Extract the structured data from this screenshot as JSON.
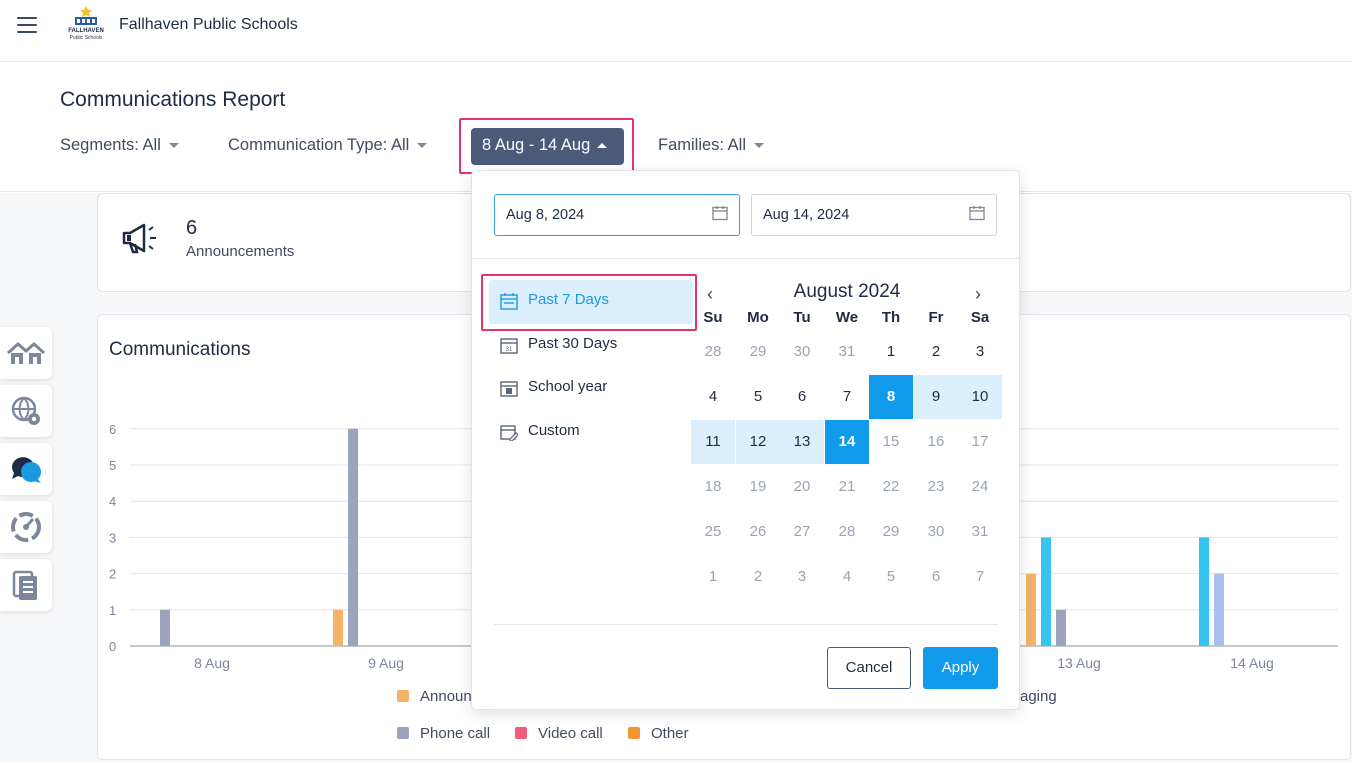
{
  "app": {
    "brand": "Fallhaven Public Schools",
    "logo_text_1": "FALLHAVEN",
    "logo_text_2": "Public Schools"
  },
  "page": {
    "title": "Communications Report"
  },
  "filters": {
    "segments": "Segments: All",
    "communication_type": "Communication Type: All",
    "date_range": "8 Aug - 14 Aug",
    "families": "Families: All"
  },
  "summary": {
    "count": "6",
    "label": "Announcements"
  },
  "communications": {
    "title": "Communications"
  },
  "chart_data": {
    "type": "bar",
    "y_ticks": [
      "0",
      "1",
      "2",
      "3",
      "4",
      "5",
      "6"
    ],
    "ylim": [
      0,
      6
    ],
    "grid": true,
    "visible_x_labels": [
      "8 Aug",
      "9 Aug",
      "13 Aug",
      "14 Aug"
    ],
    "visible_bars": [
      {
        "date": "8 Aug",
        "series": "Phone call",
        "value": 1
      },
      {
        "date": "9 Aug",
        "series": "Announcements",
        "value": 1
      },
      {
        "date": "9 Aug",
        "series": "Phone call",
        "value": 6
      },
      {
        "date": "13 Aug",
        "series": "Announcements",
        "value": 2
      },
      {
        "date": "13 Aug",
        "series": "",
        "value": 3
      },
      {
        "date": "13 Aug",
        "series": "Phone call",
        "value": 1
      },
      {
        "date": "14 Aug",
        "series": "",
        "value": 3
      },
      {
        "date": "14 Aug",
        "series": "",
        "value": 2
      }
    ],
    "legend_visible": [
      "Announ",
      "aging",
      "Phone call",
      "Video call",
      "Other"
    ],
    "colors": {
      "announcements": "#f7b267",
      "phone_call": "#9ba3bf",
      "video_call": "#f05d77",
      "other": "#f4952f",
      "cyan": "#35c3f0",
      "periwinkle": "#a9bff0"
    }
  },
  "date_picker": {
    "start_date": "Aug 8, 2024",
    "end_date": "Aug 14, 2024",
    "presets": [
      {
        "label": "Past 7 Days",
        "icon": "calendar-icon",
        "selected": true
      },
      {
        "label": "Past 30 Days",
        "icon": "calendar-31-icon",
        "selected": false
      },
      {
        "label": "School year",
        "icon": "school-calendar-icon",
        "selected": false
      },
      {
        "label": "Custom",
        "icon": "calendar-edit-icon",
        "selected": false
      }
    ],
    "month": "August 2024",
    "prev": "‹",
    "next": "›",
    "weekdays": [
      "Su",
      "Mo",
      "Tu",
      "We",
      "Th",
      "Fr",
      "Sa"
    ],
    "weeks": [
      [
        "28",
        "29",
        "30",
        "31",
        "1",
        "2",
        "3"
      ],
      [
        "4",
        "5",
        "6",
        "7",
        "8",
        "9",
        "10"
      ],
      [
        "11",
        "12",
        "13",
        "14",
        "15",
        "16",
        "17"
      ],
      [
        "18",
        "19",
        "20",
        "21",
        "22",
        "23",
        "24"
      ],
      [
        "25",
        "26",
        "27",
        "28",
        "29",
        "30",
        "31"
      ],
      [
        "1",
        "2",
        "3",
        "4",
        "5",
        "6",
        "7"
      ]
    ],
    "range_start": "8",
    "range_end": "14",
    "cancel": "Cancel",
    "apply": "Apply"
  },
  "sidenav": [
    "home-icon",
    "globe-settings-icon",
    "chat-icon",
    "dashboard-gauge-icon",
    "documents-icon"
  ]
}
